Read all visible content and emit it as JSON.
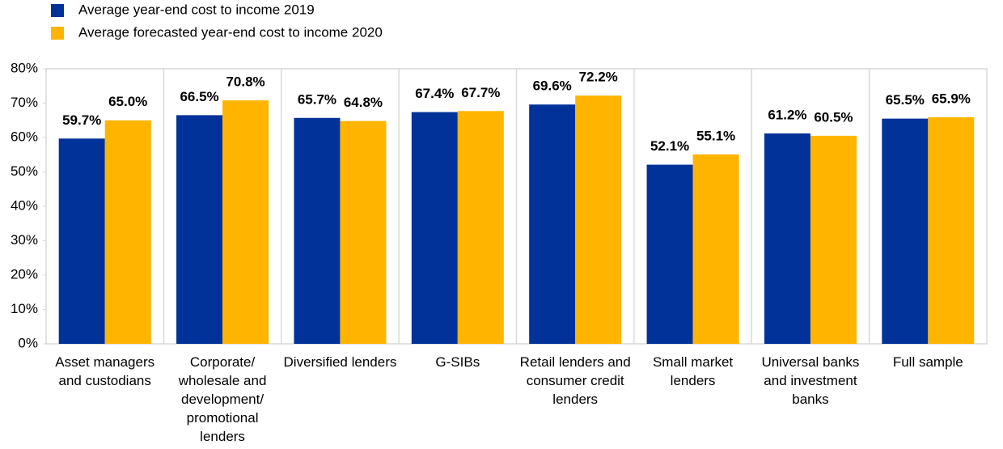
{
  "chart_data": {
    "type": "bar",
    "categories": [
      "Asset managers and custodians",
      "Corporate/ wholesale and development/ promotional lenders",
      "Diversified lenders",
      "G-SIBs",
      "Retail lenders and consumer credit lenders",
      "Small market lenders",
      "Universal banks and investment banks",
      "Full sample"
    ],
    "series": [
      {
        "name": "Average year-end cost to income 2019",
        "color": "#003299",
        "values": [
          59.7,
          66.5,
          65.7,
          67.4,
          69.6,
          52.1,
          61.2,
          65.5
        ],
        "value_labels": [
          "59.7%",
          "66.5%",
          "65.7%",
          "67.4%",
          "69.6%",
          "52.1%",
          "61.2%",
          "65.5%"
        ]
      },
      {
        "name": "Average forecasted year-end cost to income 2020",
        "color": "#FFB400",
        "values": [
          65.0,
          70.8,
          64.8,
          67.7,
          72.2,
          55.1,
          60.5,
          65.9
        ],
        "value_labels": [
          "65.0%",
          "70.8%",
          "64.8%",
          "67.7%",
          "72.2%",
          "55.1%",
          "60.5%",
          "65.9%"
        ]
      }
    ],
    "ylim": [
      0,
      80
    ],
    "yticks": [
      {
        "value": 0,
        "label": "0%"
      },
      {
        "value": 10,
        "label": "10%"
      },
      {
        "value": 20,
        "label": "20%"
      },
      {
        "value": 30,
        "label": "30%"
      },
      {
        "value": 40,
        "label": "40%"
      },
      {
        "value": 50,
        "label": "50%"
      },
      {
        "value": 60,
        "label": "60%"
      },
      {
        "value": 70,
        "label": "70%"
      },
      {
        "value": 80,
        "label": "80%"
      }
    ],
    "grid": false,
    "legend": "top-left"
  }
}
